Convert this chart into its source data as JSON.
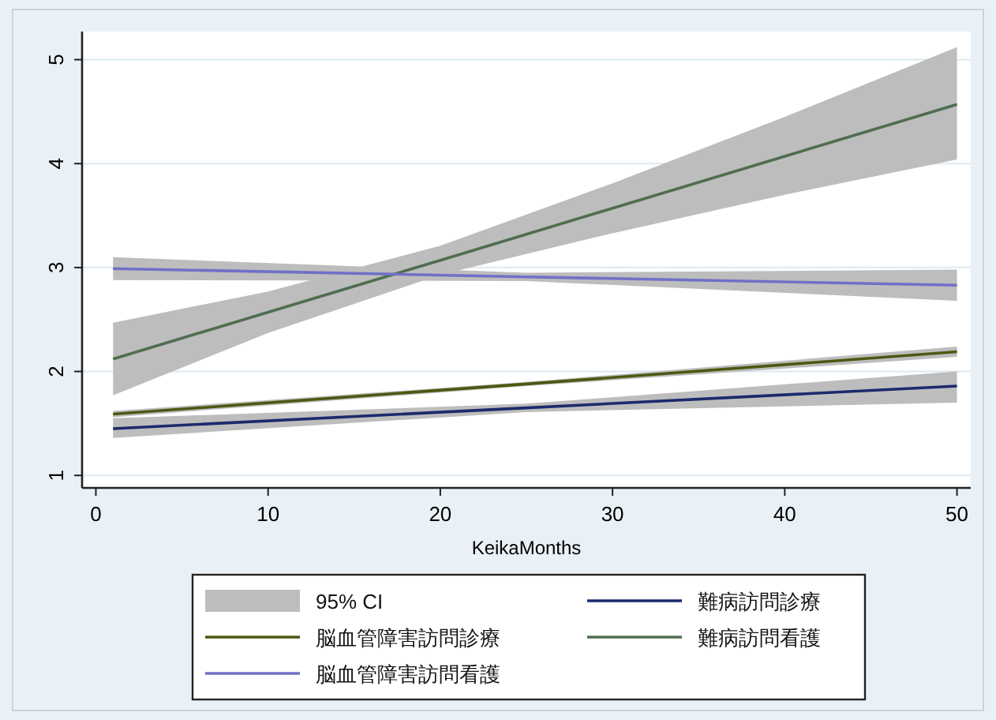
{
  "chart_data": {
    "type": "line",
    "xlabel": "KeikaMonths",
    "xlim": [
      -0.8,
      50.8
    ],
    "xticks": [
      0,
      10,
      20,
      30,
      40,
      50
    ],
    "ylim": [
      0.88,
      5.27
    ],
    "yticks": [
      1,
      2,
      3,
      4,
      5
    ],
    "grid": "y",
    "legend": "bottom",
    "series": [
      {
        "name": "95% CI",
        "type": "area",
        "color": "#bdbdbd"
      },
      {
        "name": "難病訪問診療",
        "color": "#1c2a6c",
        "x": [
          1,
          25,
          50
        ],
        "values": [
          1.45,
          1.65,
          1.86
        ],
        "lower": [
          1.36,
          1.61,
          1.7
        ],
        "upper": [
          1.55,
          1.69,
          2.0
        ]
      },
      {
        "name": "脳血管障害訪問診療",
        "color": "#4a5a12",
        "x": [
          1,
          25,
          50
        ],
        "values": [
          1.59,
          1.88,
          2.19
        ],
        "lower": [
          1.56,
          1.86,
          2.14
        ],
        "upper": [
          1.62,
          1.9,
          2.24
        ]
      },
      {
        "name": "難病訪問看護",
        "color": "#4f6e50",
        "x": [
          1,
          10,
          20,
          30,
          40,
          50
        ],
        "values": [
          2.12,
          2.57,
          3.07,
          3.57,
          4.07,
          4.57
        ],
        "lower": [
          1.77,
          2.37,
          2.93,
          3.33,
          3.7,
          4.04
        ],
        "upper": [
          2.47,
          2.77,
          3.21,
          3.81,
          4.45,
          5.12
        ]
      },
      {
        "name": "脳血管障害訪問看護",
        "color": "#7070c8",
        "x": [
          1,
          25,
          50
        ],
        "values": [
          2.99,
          2.91,
          2.83
        ],
        "lower": [
          2.88,
          2.87,
          2.68
        ],
        "upper": [
          3.1,
          2.95,
          2.98
        ]
      }
    ]
  }
}
